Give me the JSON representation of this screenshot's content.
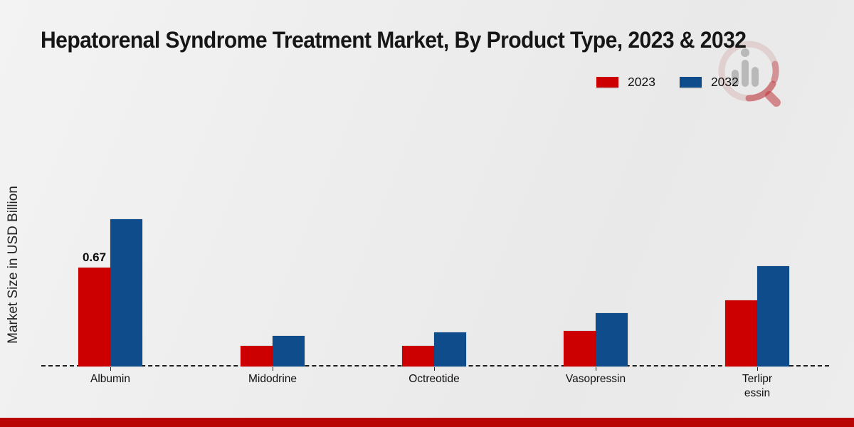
{
  "title": "Hepatorenal Syndrome Treatment Market, By Product Type, 2023 & 2032",
  "y_axis_label": "Market Size in USD Billion",
  "legend": {
    "items": [
      {
        "label": "2023",
        "color": "#cc0000"
      },
      {
        "label": "2032",
        "color": "#0f4c8c"
      }
    ]
  },
  "watermark_icon": "market-research-magnifier-chart-logo",
  "footer": {
    "accent_color": "#b90504"
  },
  "chart_data": {
    "type": "bar",
    "title": "Hepatorenal Syndrome Treatment Market, By Product Type, 2023 & 2032",
    "xlabel": "",
    "ylabel": "Market Size in USD Billion",
    "categories": [
      "Albumin",
      "Midodrine",
      "Octreotide",
      "Vasopressin",
      "Terlipressin"
    ],
    "category_display_labels": [
      "Albumin",
      "Midodrine",
      "Octreotide",
      "Vasopressin",
      "Terlipr\nessin"
    ],
    "series": [
      {
        "name": "2023",
        "color": "#cc0000",
        "values": [
          0.67,
          0.14,
          0.14,
          0.24,
          0.45
        ]
      },
      {
        "name": "2032",
        "color": "#0f4c8c",
        "values": [
          1.0,
          0.21,
          0.23,
          0.36,
          0.68
        ]
      }
    ],
    "bar_value_labels": [
      {
        "category": "Albumin",
        "series": "2023",
        "text": "0.67"
      }
    ],
    "ylim": [
      0,
      1.1
    ],
    "grid": false,
    "legend_position": "top-right",
    "baseline_style": "dashed"
  }
}
